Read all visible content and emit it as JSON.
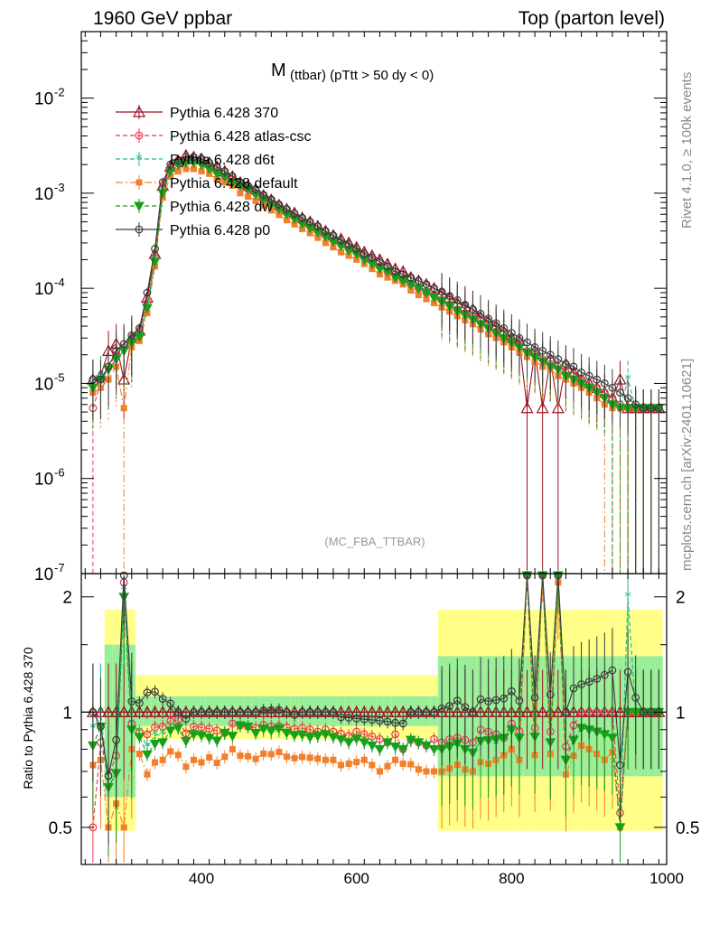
{
  "header": {
    "left": "1960 GeV ppbar",
    "right": "Top (parton level)"
  },
  "side_labels": {
    "rivet": "Rivet 4.1.0, ≥ 100k events",
    "mcplots": "mcplots.cern.ch [arXiv:2401.10621]"
  },
  "chart_data": {
    "type": "line",
    "title_main": "M",
    "title_sub": "(ttbar) (pTtt > 50 dy < 0)",
    "watermark": "(MC_FBA_TTBAR)",
    "xlabel": "",
    "ylabel": "",
    "ratio_ylabel": "Ratio to Pythia 6.428 370",
    "xlim": [
      245,
      1000
    ],
    "ylim_log": [
      1e-07,
      0.05
    ],
    "ratio_ylim": [
      0.4,
      2.3
    ],
    "x_ticks": [
      "400",
      "600",
      "800",
      "1000"
    ],
    "x_tick_values": [
      400,
      600,
      800,
      1000
    ],
    "y_ticks": [
      {
        "value": 1e-07,
        "base": "10",
        "exp": "-7"
      },
      {
        "value": 1e-06,
        "base": "10",
        "exp": "-6"
      },
      {
        "value": 1e-05,
        "base": "10",
        "exp": "-5"
      },
      {
        "value": 0.0001,
        "base": "10",
        "exp": "-4"
      },
      {
        "value": 0.001,
        "base": "10",
        "exp": "-3"
      },
      {
        "value": 0.01,
        "base": "10",
        "exp": "-2"
      }
    ],
    "ratio_ticks": [
      "0.5",
      "1",
      "2"
    ],
    "ratio_tick_values": [
      0.5,
      1,
      2
    ],
    "x": [
      260,
      270,
      280,
      290,
      300,
      310,
      320,
      330,
      340,
      350,
      360,
      370,
      380,
      390,
      400,
      410,
      420,
      430,
      440,
      450,
      460,
      470,
      480,
      490,
      500,
      510,
      520,
      530,
      540,
      550,
      560,
      570,
      580,
      590,
      600,
      610,
      620,
      630,
      640,
      650,
      660,
      670,
      680,
      690,
      700,
      710,
      720,
      730,
      740,
      750,
      760,
      770,
      780,
      790,
      800,
      810,
      820,
      830,
      840,
      850,
      860,
      870,
      880,
      890,
      900,
      910,
      920,
      930,
      940,
      950,
      960,
      970,
      980,
      990
    ],
    "series": [
      {
        "name": "Pythia 6.428 370",
        "color": "#9c1020",
        "marker": "triangle-open",
        "dash": "",
        "values": [
          1.1e-05,
          1.2e-05,
          2.2e-05,
          2.6e-05,
          1.1e-05,
          3e-05,
          3.6e-05,
          8e-05,
          0.00023,
          0.0012,
          0.0019,
          0.0022,
          0.0025,
          0.0024,
          0.0023,
          0.0021,
          0.0019,
          0.0017,
          0.0015,
          0.0013,
          0.0012,
          0.0011,
          0.00095,
          0.00085,
          0.00075,
          0.00068,
          0.00062,
          0.00055,
          0.0005,
          0.00045,
          0.0004,
          0.00036,
          0.00033,
          0.0003,
          0.00027,
          0.00024,
          0.00022,
          0.0002,
          0.00018,
          0.00016,
          0.00015,
          0.00013,
          0.00012,
          0.00011,
          0.0001,
          9e-05,
          8e-05,
          7e-05,
          6.5e-05,
          6e-05,
          5e-05,
          4.5e-05,
          4e-05,
          3.5e-05,
          3e-05,
          2.8e-05,
          5.5e-06,
          2.2e-05,
          5.5e-06,
          1.8e-05,
          5.5e-06,
          1.6e-05,
          1.3e-05,
          1.1e-05,
          1e-05,
          9e-06,
          8e-06,
          7e-06,
          1.1e-05,
          5.5e-06,
          5.5e-06,
          5.5e-06,
          5.5e-06,
          5.5e-06
        ]
      },
      {
        "name": "Pythia 6.428 atlas-csc",
        "color": "#ee3355",
        "marker": "circle-open",
        "dash": "5,3",
        "values": [
          5.5e-06,
          1e-05,
          1.5e-05,
          2e-05,
          2.4e-05,
          2.8e-05,
          3.2e-05,
          7e-05,
          0.00021,
          0.0011,
          0.0018,
          0.0021,
          0.0022,
          0.0022,
          0.0021,
          0.0019,
          0.0017,
          0.0015,
          0.0014,
          0.0012,
          0.0011,
          0.001,
          0.00088,
          0.00078,
          0.00069,
          0.00062,
          0.00056,
          0.0005,
          0.00045,
          0.0004,
          0.00036,
          0.00032,
          0.00029,
          0.00026,
          0.00024,
          0.00021,
          0.00019,
          0.00017,
          0.00015,
          0.00014,
          0.00012,
          0.00011,
          0.0001,
          9e-05,
          8.5e-05,
          7.5e-05,
          6.8e-05,
          6e-05,
          5.5e-05,
          5e-05,
          4.5e-05,
          4e-05,
          3.5e-05,
          3e-05,
          2.8e-05,
          2.5e-05,
          2.2e-05,
          2e-05,
          1.8e-05,
          1.6e-05,
          1.5e-05,
          1.3e-05,
          1.2e-05,
          1.1e-05,
          1e-05,
          9e-06,
          8e-06,
          7e-06,
          6e-06,
          5.5e-06,
          5.5e-06,
          5.5e-06,
          5.5e-06,
          5.5e-06
        ]
      },
      {
        "name": "Pythia 6.428 d6t",
        "color": "#1abc8c",
        "marker": "star",
        "dash": "5,3",
        "values": [
          1e-05,
          1.2e-05,
          1.4e-05,
          1.8e-05,
          2.3e-05,
          2.8e-05,
          3.2e-05,
          6.5e-05,
          0.0002,
          0.00105,
          0.0017,
          0.002,
          0.0021,
          0.0021,
          0.002,
          0.0018,
          0.0016,
          0.0015,
          0.0013,
          0.0012,
          0.0011,
          0.00097,
          0.00085,
          0.00075,
          0.00067,
          0.0006,
          0.00054,
          0.00048,
          0.00043,
          0.00039,
          0.00035,
          0.00031,
          0.00028,
          0.00025,
          0.00023,
          0.0002,
          0.00018,
          0.00016,
          0.00015,
          0.00013,
          0.00012,
          0.00011,
          0.0001,
          9e-05,
          8e-05,
          7.2e-05,
          6.5e-05,
          5.8e-05,
          5.2e-05,
          4.7e-05,
          4.2e-05,
          3.8e-05,
          3.3e-05,
          3e-05,
          2.7e-05,
          2.4e-05,
          2.1e-05,
          1.9e-05,
          1.7e-05,
          1.5e-05,
          1.4e-05,
          1.2e-05,
          1.1e-05,
          1e-05,
          9e-06,
          8e-06,
          7e-06,
          6e-06,
          5.5e-06,
          1.1e-05,
          5.5e-06,
          5.5e-06,
          5.5e-06,
          5.5e-06
        ]
      },
      {
        "name": "Pythia 6.428 default",
        "color": "#f47f2b",
        "marker": "square",
        "dash": "8,3,2,3",
        "values": [
          8e-06,
          9e-06,
          1.1e-05,
          1.5e-05,
          5.5e-06,
          2.4e-05,
          2.8e-05,
          5.5e-05,
          0.00017,
          0.0009,
          0.0015,
          0.0017,
          0.0018,
          0.0018,
          0.0017,
          0.0016,
          0.0014,
          0.0013,
          0.0012,
          0.001,
          0.00092,
          0.00083,
          0.00074,
          0.00066,
          0.00059,
          0.00052,
          0.00047,
          0.00042,
          0.00038,
          0.00034,
          0.0003,
          0.00027,
          0.00024,
          0.00022,
          0.0002,
          0.00018,
          0.00016,
          0.00014,
          0.00013,
          0.00012,
          0.00011,
          9.5e-05,
          8.5e-05,
          7.7e-05,
          7e-05,
          6.3e-05,
          5.7e-05,
          5.1e-05,
          4.6e-05,
          4.2e-05,
          3.7e-05,
          3.3e-05,
          3e-05,
          2.7e-05,
          2.4e-05,
          2.1e-05,
          1.9e-05,
          1.7e-05,
          1.5e-05,
          1.4e-05,
          1.2e-05,
          1.1e-05,
          1e-05,
          9e-06,
          8e-06,
          7e-06,
          6e-06,
          5.5e-06,
          5.5e-06,
          5.5e-06,
          5.5e-06,
          5.5e-06,
          5.5e-06,
          5.5e-06
        ]
      },
      {
        "name": "Pythia 6.428 dw",
        "color": "#19a019",
        "marker": "triangle-down",
        "dash": "5,3",
        "values": [
          9e-06,
          1.1e-05,
          1.4e-05,
          1.8e-05,
          2.2e-05,
          2.7e-05,
          3.1e-05,
          6.2e-05,
          0.00019,
          0.001,
          0.0017,
          0.002,
          0.0021,
          0.0021,
          0.002,
          0.0018,
          0.0016,
          0.0015,
          0.0013,
          0.0012,
          0.0011,
          0.00097,
          0.00086,
          0.00076,
          0.00068,
          0.0006,
          0.00054,
          0.00048,
          0.00043,
          0.00039,
          0.00035,
          0.00031,
          0.00028,
          0.00025,
          0.00023,
          0.0002,
          0.00018,
          0.00016,
          0.00015,
          0.00013,
          0.00012,
          0.00011,
          0.0001,
          9e-05,
          8e-05,
          7.2e-05,
          6.5e-05,
          5.8e-05,
          5.2e-05,
          4.7e-05,
          4.2e-05,
          3.8e-05,
          3.4e-05,
          3e-05,
          2.7e-05,
          2.4e-05,
          2.1e-05,
          1.9e-05,
          1.7e-05,
          1.5e-05,
          1.4e-05,
          1.2e-05,
          1.1e-05,
          1e-05,
          9e-06,
          8e-06,
          7e-06,
          6e-06,
          5.5e-06,
          5.5e-06,
          5.5e-06,
          5.5e-06,
          5.5e-06,
          5.5e-06
        ]
      },
      {
        "name": "Pythia 6.428 p0",
        "color": "#3a3a3a",
        "marker": "circle-open",
        "dash": "",
        "values": [
          1.1e-05,
          1.1e-05,
          1.5e-05,
          2.2e-05,
          2.6e-05,
          3.2e-05,
          3.8e-05,
          9e-05,
          0.00026,
          0.0013,
          0.002,
          0.0022,
          0.0024,
          0.0024,
          0.0023,
          0.0021,
          0.0019,
          0.0017,
          0.0015,
          0.0013,
          0.0012,
          0.0011,
          0.00096,
          0.00086,
          0.00076,
          0.00068,
          0.00061,
          0.00055,
          0.0005,
          0.00045,
          0.0004,
          0.00036,
          0.00032,
          0.00029,
          0.00026,
          0.00023,
          0.00021,
          0.00019,
          0.00017,
          0.00015,
          0.00014,
          0.00013,
          0.00012,
          0.00011,
          0.0001,
          9.2e-05,
          8.3e-05,
          7.5e-05,
          6.7e-05,
          6e-05,
          5.4e-05,
          4.8e-05,
          4.3e-05,
          3.8e-05,
          3.4e-05,
          3e-05,
          2.7e-05,
          2.4e-05,
          2.2e-05,
          2e-05,
          1.8e-05,
          1.6e-05,
          1.5e-05,
          1.3e-05,
          1.2e-05,
          1.1e-05,
          1e-05,
          9e-06,
          8e-06,
          7e-06,
          6e-06,
          5.5e-06,
          5.5e-06,
          5.5e-06
        ]
      }
    ]
  }
}
